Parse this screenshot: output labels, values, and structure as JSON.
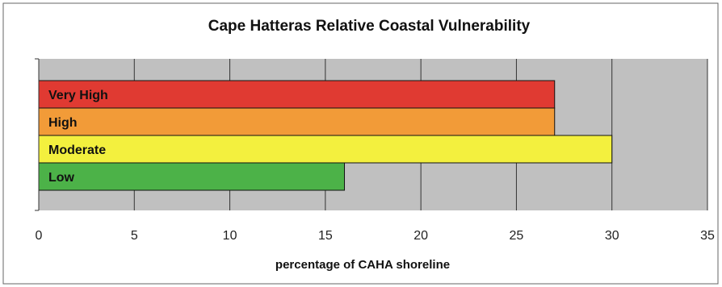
{
  "chart_data": {
    "type": "bar",
    "orientation": "horizontal",
    "title": "Cape Hatteras Relative Coastal Vulnerability",
    "xlabel": "percentage of CAHA shoreline",
    "ylabel": "",
    "categories": [
      "Very High",
      "High",
      "Moderate",
      "Low"
    ],
    "values": [
      27,
      27,
      30,
      16
    ],
    "colors": [
      "#e03a32",
      "#f29b38",
      "#f3f03e",
      "#4cb248"
    ],
    "xlim": [
      0,
      35
    ],
    "xticks": [
      "0",
      "5",
      "10",
      "15",
      "20",
      "25",
      "30",
      "35"
    ],
    "grid": "vertical",
    "plot_background": "#c0c0c0",
    "legend": "none"
  }
}
